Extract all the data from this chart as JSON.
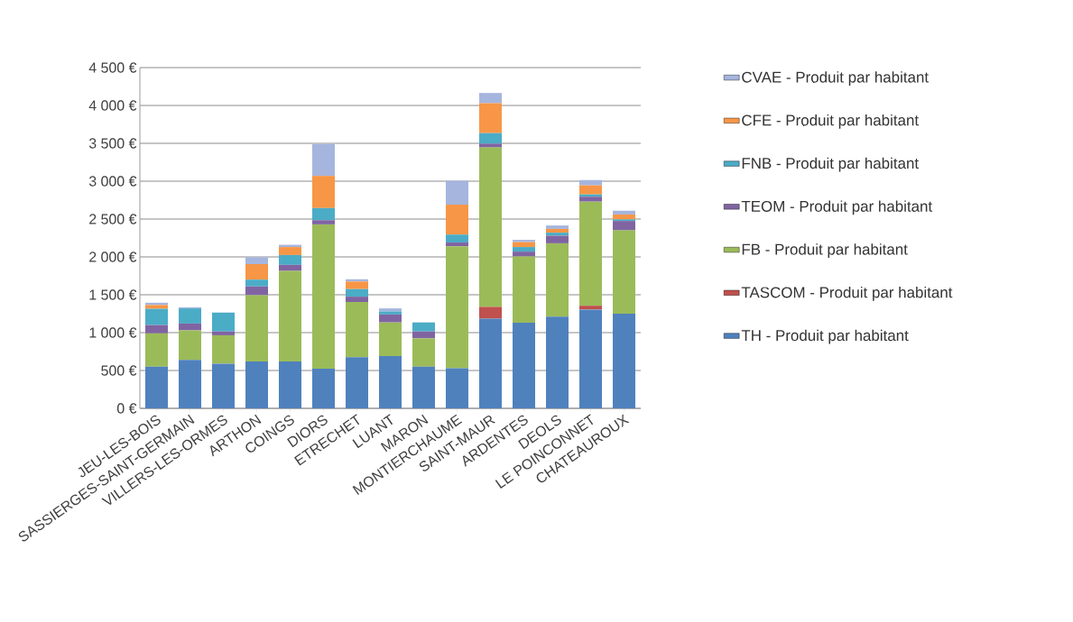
{
  "chart_data": {
    "type": "bar",
    "stacked": true,
    "grid": "y",
    "legend": "right",
    "categories": [
      "JEU-LES-BOIS",
      "SASSIERGES-SAINT-GERMAIN",
      "VILLERS-LES-ORMES",
      "ARTHON",
      "COINGS",
      "DIORS",
      "ETRECHET",
      "LUANT",
      "MARON",
      "MONTIERCHAUME",
      "SAINT-MAUR",
      "ARDENTES",
      "DEOLS",
      "LE POINCONNET",
      "CHATEAUROUX"
    ],
    "ylim": [
      0,
      4500
    ],
    "yticks": [
      {
        "value": 0,
        "label": "0 €"
      },
      {
        "value": 500,
        "label": "500 €"
      },
      {
        "value": 1000,
        "label": "1 000 €"
      },
      {
        "value": 1500,
        "label": "1 500 €"
      },
      {
        "value": 2000,
        "label": "2 000 €"
      },
      {
        "value": 2500,
        "label": "2 500 €"
      },
      {
        "value": 3000,
        "label": "3 000 €"
      },
      {
        "value": 3500,
        "label": "3 500 €"
      },
      {
        "value": 4000,
        "label": "4 000 €"
      },
      {
        "value": 4500,
        "label": "4 500 €"
      }
    ],
    "series": [
      {
        "name": "TH - Produit par habitant",
        "color": "#4f81bd",
        "values": [
          550,
          640,
          590,
          620,
          620,
          525,
          675,
          690,
          550,
          530,
          1185,
          1130,
          1210,
          1305,
          1250
        ]
      },
      {
        "name": "TASCOM - Produit par habitant",
        "color": "#c0504d",
        "values": [
          0,
          0,
          0,
          0,
          0,
          0,
          0,
          0,
          0,
          0,
          155,
          0,
          0,
          50,
          0
        ]
      },
      {
        "name": "FB - Produit par habitant",
        "color": "#9bbb59",
        "values": [
          440,
          390,
          375,
          875,
          1195,
          1905,
          730,
          445,
          375,
          1610,
          2105,
          875,
          970,
          1375,
          1100
        ]
      },
      {
        "name": "TEOM - Produit par habitant",
        "color": "#8064a2",
        "values": [
          110,
          90,
          50,
          115,
          80,
          55,
          70,
          105,
          90,
          50,
          50,
          65,
          100,
          65,
          125
        ]
      },
      {
        "name": "FNB - Produit par habitant",
        "color": "#4bacc6",
        "values": [
          215,
          200,
          250,
          90,
          130,
          160,
          100,
          40,
          120,
          105,
          140,
          60,
          40,
          30,
          20
        ]
      },
      {
        "name": "CFE - Produit par habitant",
        "color": "#f79646",
        "values": [
          50,
          0,
          0,
          205,
          105,
          425,
          100,
          0,
          0,
          395,
          395,
          65,
          50,
          120,
          65
        ]
      },
      {
        "name": "CVAE - Produit par habitant",
        "color": "#a5b5de",
        "values": [
          30,
          15,
          0,
          90,
          30,
          420,
          30,
          40,
          0,
          315,
          135,
          30,
          45,
          70,
          50
        ]
      }
    ]
  }
}
